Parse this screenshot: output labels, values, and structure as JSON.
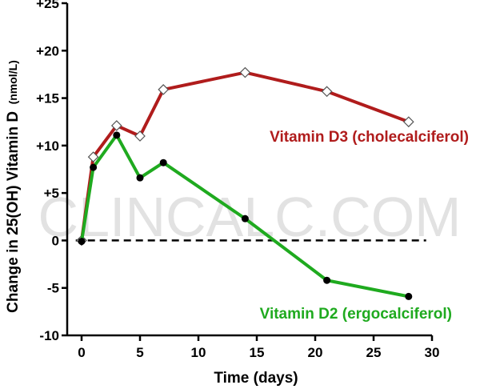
{
  "chart_data": {
    "type": "line",
    "xlabel": "Time (days)",
    "ylabel": "Change in 25(OH) Vitamin D",
    "ylabel_unit": "(nmol/L)",
    "xlim": [
      -1,
      30
    ],
    "ylim": [
      -10,
      25
    ],
    "x_ticks": [
      0,
      5,
      10,
      15,
      20,
      25,
      30
    ],
    "y_ticks": [
      {
        "value": 25,
        "label": "+25"
      },
      {
        "value": 20,
        "label": "+20"
      },
      {
        "value": 15,
        "label": "+15"
      },
      {
        "value": 10,
        "label": "+10"
      },
      {
        "value": 5,
        "label": "+5"
      },
      {
        "value": 0,
        "label": "0"
      },
      {
        "value": -5,
        "label": "-5"
      },
      {
        "value": -10,
        "label": "-10"
      }
    ],
    "baseline": {
      "y": 0,
      "style": "dashed"
    },
    "watermark": "CLINCALC.COM",
    "series": [
      {
        "name": "Vitamin D3 (cholecalciferol)",
        "color": "#b01c1c",
        "marker": "diamond-open",
        "x": [
          0,
          1,
          3,
          5,
          7,
          14,
          21,
          28
        ],
        "y": [
          0,
          8.8,
          12.1,
          11.0,
          15.9,
          17.7,
          15.7,
          12.5
        ]
      },
      {
        "name": "Vitamin D2 (ergocalciferol)",
        "color": "#1faa1f",
        "marker": "circle-filled",
        "x": [
          0,
          1,
          3,
          5,
          7,
          14,
          21,
          28
        ],
        "y": [
          -0.1,
          7.7,
          11.1,
          6.6,
          8.2,
          2.3,
          -4.2,
          -5.9
        ]
      }
    ]
  }
}
